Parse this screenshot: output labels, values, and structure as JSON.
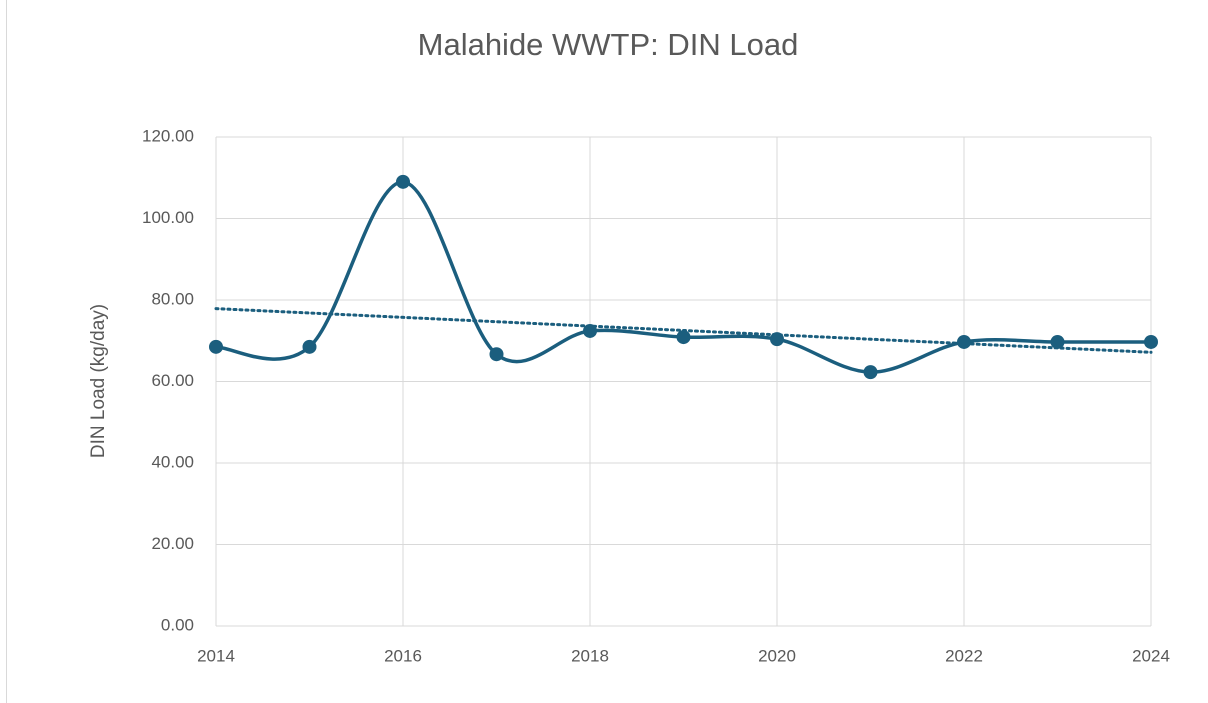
{
  "chart_data": {
    "type": "line",
    "title": "Malahide WWTP: DIN Load",
    "ylabel": "DIN Load (kg/day)",
    "x": [
      2014,
      2015,
      2016,
      2017,
      2018,
      2019,
      2020,
      2021,
      2022,
      2023,
      2024
    ],
    "series": [
      {
        "color": "#1b5e7e",
        "smooth": true,
        "markers": true,
        "trendline": "linear",
        "values": [
          68.5,
          68.5,
          109,
          66.7,
          72.4,
          70.9,
          70.4,
          62.3,
          69.7,
          69.7,
          69.7
        ]
      }
    ],
    "xlim": [
      2014,
      2024
    ],
    "xticks": [
      2014,
      2016,
      2018,
      2020,
      2022,
      2024
    ],
    "ylim": [
      0,
      120
    ],
    "yticks": [
      {
        "value": 0,
        "label": "0.00"
      },
      {
        "value": 20,
        "label": "20.00"
      },
      {
        "value": 40,
        "label": "40.00"
      },
      {
        "value": 60,
        "label": "60.00"
      },
      {
        "value": 80,
        "label": "80.00"
      },
      {
        "value": 100,
        "label": "100.00"
      },
      {
        "value": 120,
        "label": "120.00"
      }
    ],
    "grid": true
  }
}
